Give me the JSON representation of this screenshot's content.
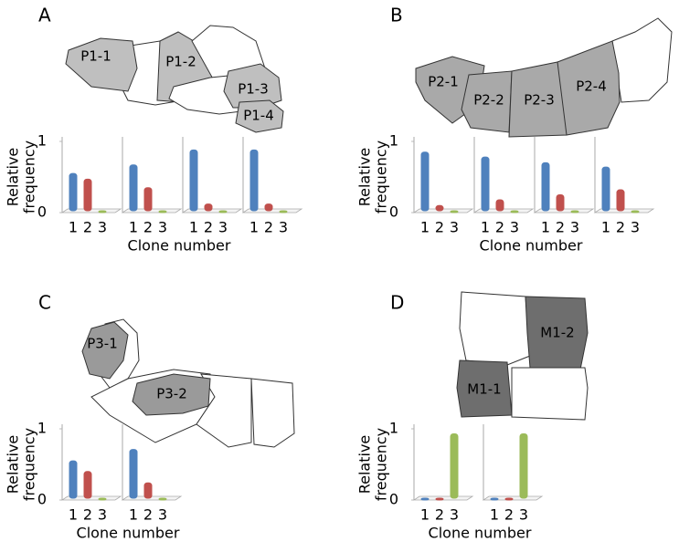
{
  "chart_data": [
    {
      "type": "bar",
      "panel": "A",
      "regions": [
        "P1-1",
        "P1-2",
        "P1-3",
        "P1-4"
      ],
      "ylabel": [
        "Relative",
        "frequency"
      ],
      "xlabel": "Clone number",
      "categories": [
        "1",
        "2",
        "3"
      ],
      "colors": [
        "#4f81bd",
        "#c0504d",
        "#9bbb59"
      ],
      "ylim": [
        0,
        1
      ],
      "yticks": [
        0,
        1
      ],
      "series": [
        {
          "values": [
            0.55,
            0.47,
            0
          ]
        },
        {
          "values": [
            0.67,
            0.35,
            0
          ]
        },
        {
          "values": [
            0.88,
            0.12,
            0
          ]
        },
        {
          "values": [
            0.88,
            0.12,
            0
          ]
        }
      ]
    },
    {
      "type": "bar",
      "panel": "B",
      "regions": [
        "P2-1",
        "P2-2",
        "P2-3",
        "P2-4"
      ],
      "ylabel": [
        "Relative",
        "frequency"
      ],
      "xlabel": "Clone number",
      "categories": [
        "1",
        "2",
        "3"
      ],
      "colors": [
        "#4f81bd",
        "#c0504d",
        "#9bbb59"
      ],
      "ylim": [
        0,
        1
      ],
      "yticks": [
        0,
        1
      ],
      "series": [
        {
          "values": [
            0.85,
            0.1,
            0
          ]
        },
        {
          "values": [
            0.78,
            0.18,
            0
          ]
        },
        {
          "values": [
            0.7,
            0.25,
            0
          ]
        },
        {
          "values": [
            0.64,
            0.32,
            0
          ]
        }
      ]
    },
    {
      "type": "bar",
      "panel": "C",
      "regions": [
        "P3-1",
        "P3-2"
      ],
      "ylabel": [
        "Relative",
        "frequency"
      ],
      "xlabel": "Clone number",
      "categories": [
        "1",
        "2",
        "3"
      ],
      "colors": [
        "#4f81bd",
        "#c0504d",
        "#9bbb59"
      ],
      "ylim": [
        0,
        1
      ],
      "yticks": [
        0,
        1
      ],
      "series": [
        {
          "values": [
            0.55,
            0.4,
            0
          ]
        },
        {
          "values": [
            0.71,
            0.24,
            0
          ]
        }
      ]
    },
    {
      "type": "bar",
      "panel": "D",
      "regions": [
        "M1-2",
        "M1-1"
      ],
      "ylabel": [
        "Relative",
        "frequency"
      ],
      "xlabel": "Clone number",
      "categories": [
        "1",
        "2",
        "3"
      ],
      "colors": [
        "#4f81bd",
        "#c0504d",
        "#9bbb59"
      ],
      "ylim": [
        0,
        1
      ],
      "yticks": [
        0,
        1
      ],
      "series": [
        {
          "values": [
            0,
            0,
            0.93
          ]
        },
        {
          "values": [
            0,
            0,
            0.93
          ]
        }
      ]
    }
  ]
}
